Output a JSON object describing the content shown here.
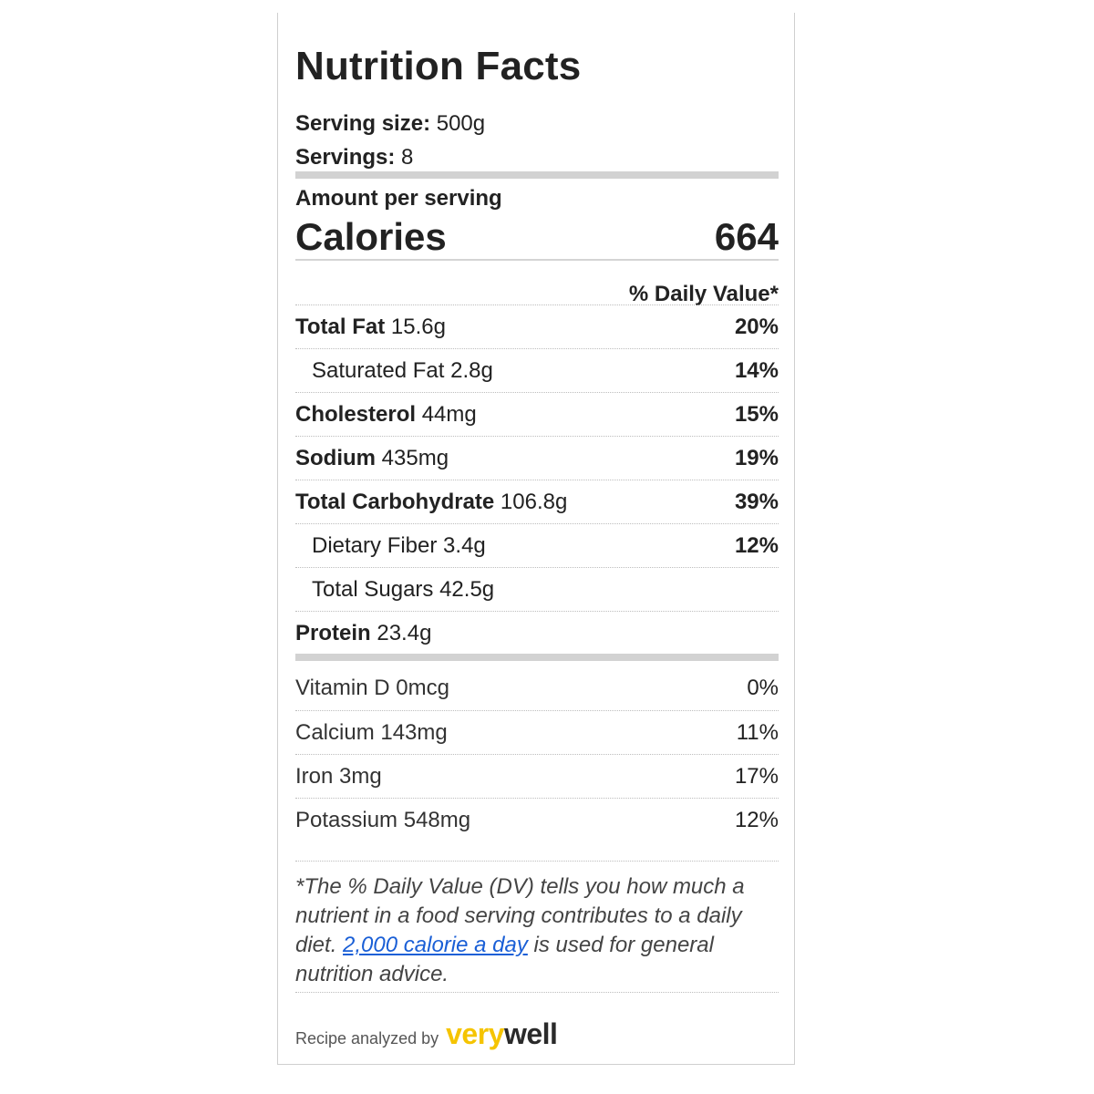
{
  "label": {
    "title": "Nutrition Facts",
    "serving_size_label": "Serving size:",
    "serving_size_value": "500g",
    "servings_label": "Servings:",
    "servings_value": "8",
    "amount_per_serving": "Amount per serving",
    "calories_label": "Calories",
    "calories_value": "664",
    "daily_value_header": "% Daily Value*"
  },
  "nutrients": [
    {
      "name": "Total Fat",
      "amount": "15.6g",
      "dv": "20%"
    },
    {
      "name": "Saturated Fat",
      "amount": "2.8g",
      "dv": "14%"
    },
    {
      "name": "Cholesterol",
      "amount": "44mg",
      "dv": "15%"
    },
    {
      "name": "Sodium",
      "amount": "435mg",
      "dv": "19%"
    },
    {
      "name": "Total Carbohydrate",
      "amount": "106.8g",
      "dv": "39%"
    },
    {
      "name": "Dietary Fiber",
      "amount": "3.4g",
      "dv": "12%"
    },
    {
      "name": "Total Sugars",
      "amount": "42.5g",
      "dv": ""
    },
    {
      "name": "Protein",
      "amount": "23.4g",
      "dv": ""
    }
  ],
  "vitamins": [
    {
      "name": "Vitamin D",
      "amount": "0mcg",
      "dv": "0%"
    },
    {
      "name": "Calcium",
      "amount": "143mg",
      "dv": "11%"
    },
    {
      "name": "Iron",
      "amount": "3mg",
      "dv": "17%"
    },
    {
      "name": "Potassium",
      "amount": "548mg",
      "dv": "12%"
    }
  ],
  "footnote": {
    "text_before": "*The % Daily Value (DV) tells you how much a nutrient in a food serving contributes to a daily diet. ",
    "link_text": "2,000 calorie a day",
    "text_after": " is used for general nutrition advice."
  },
  "attribution": {
    "prefix": "Recipe analyzed by",
    "brand_part1": "very",
    "brand_part2": "well"
  },
  "colors": {
    "bar_gray": "#d2d2d2",
    "link_blue": "#1a5fd6",
    "brand_yellow": "#f5c400"
  }
}
